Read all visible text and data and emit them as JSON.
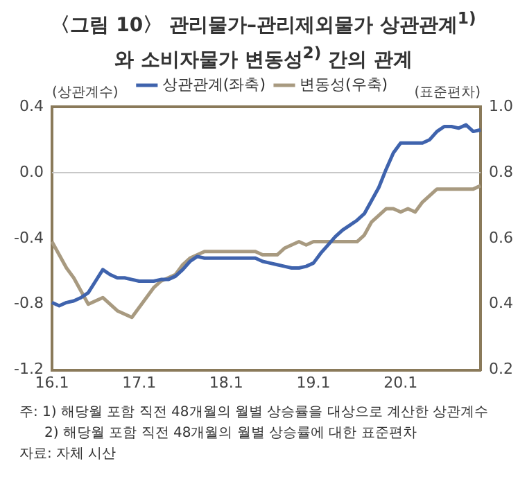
{
  "chart_data": {
    "type": "line",
    "title": "〈그림 10〉 관리물가–관리제외물가 상관관계$^{1)}$와 소비자물가 변동성$^{2)}$ 간의 관계",
    "ylabel": "(상관계수)",
    "y2label": "(표준편차)",
    "categories": [
      "16.1",
      null,
      null,
      null,
      null,
      null,
      null,
      null,
      null,
      null,
      null,
      null,
      "17.1",
      null,
      null,
      null,
      null,
      null,
      null,
      null,
      null,
      null,
      null,
      null,
      "18.1",
      null,
      null,
      null,
      null,
      null,
      null,
      null,
      null,
      null,
      null,
      null,
      "19.1",
      null,
      null,
      null,
      null,
      null,
      null,
      null,
      null,
      null,
      null,
      null,
      "20.1",
      null,
      null,
      null,
      null,
      null,
      null,
      null,
      null,
      null,
      null,
      null
    ],
    "series": [
      {
        "name": "상관관계(좌축)",
        "color": "#3f63ad",
        "values": [
          -0.79,
          -0.81,
          -0.79,
          -0.78,
          -0.76,
          -0.73,
          -0.66,
          -0.59,
          -0.62,
          -0.64,
          -0.64,
          -0.65,
          -0.66,
          -0.66,
          -0.66,
          -0.65,
          -0.65,
          -0.63,
          -0.59,
          -0.54,
          -0.51,
          -0.52,
          -0.52,
          -0.52,
          -0.52,
          -0.52,
          -0.52,
          -0.52,
          -0.52,
          -0.54,
          -0.55,
          -0.56,
          -0.57,
          -0.58,
          -0.58,
          -0.57,
          -0.55,
          -0.49,
          -0.44,
          -0.39,
          -0.35,
          -0.32,
          -0.29,
          -0.25,
          -0.17,
          -0.09,
          0.02,
          0.12,
          0.18,
          0.18,
          0.18,
          0.18,
          0.2,
          0.25,
          0.28,
          0.28,
          0.27,
          0.29,
          0.25,
          0.26
        ]
      },
      {
        "name": "변동성(우축)",
        "color": "#a89a80",
        "axis": "y2",
        "values": [
          0.59,
          0.55,
          0.51,
          0.48,
          0.44,
          0.4,
          0.41,
          0.42,
          0.4,
          0.38,
          0.37,
          0.36,
          0.39,
          0.42,
          0.45,
          0.47,
          0.48,
          0.49,
          0.52,
          0.54,
          0.55,
          0.56,
          0.56,
          0.56,
          0.56,
          0.56,
          0.56,
          0.56,
          0.56,
          0.55,
          0.55,
          0.55,
          0.57,
          0.58,
          0.59,
          0.58,
          0.59,
          0.59,
          0.59,
          0.59,
          0.59,
          0.59,
          0.59,
          0.61,
          0.65,
          0.67,
          0.69,
          0.69,
          0.68,
          0.69,
          0.68,
          0.71,
          0.73,
          0.75,
          0.75,
          0.75,
          0.75,
          0.75,
          0.75,
          0.76
        ]
      }
    ],
    "ylim": [
      -1.2,
      0.4
    ],
    "yticks": [
      0.4,
      {
        "value": 0,
        "label": "0.0"
      },
      -0.4,
      -0.8,
      -1.2
    ],
    "y2lim": [
      0.2,
      1.0
    ],
    "y2ticks": [
      {
        "value": 1.0,
        "label": "1.0"
      },
      0.8,
      0.6,
      0.4,
      0.2
    ],
    "ref_lines": [
      {
        "axis": "y",
        "value": 0,
        "color": "#c8c8c8"
      }
    ],
    "legend": "top",
    "marker": "none",
    "line_style": "solid",
    "annotations": [
      "주: 1) 해당월 포함 직전 48개월의 월별 상승률을 대상으로 계산한 상관계수",
      "2) 해당월 포함 직전 48개월의 월별 상승률에 대한 표준편차",
      "자료: 자체 시산"
    ]
  }
}
